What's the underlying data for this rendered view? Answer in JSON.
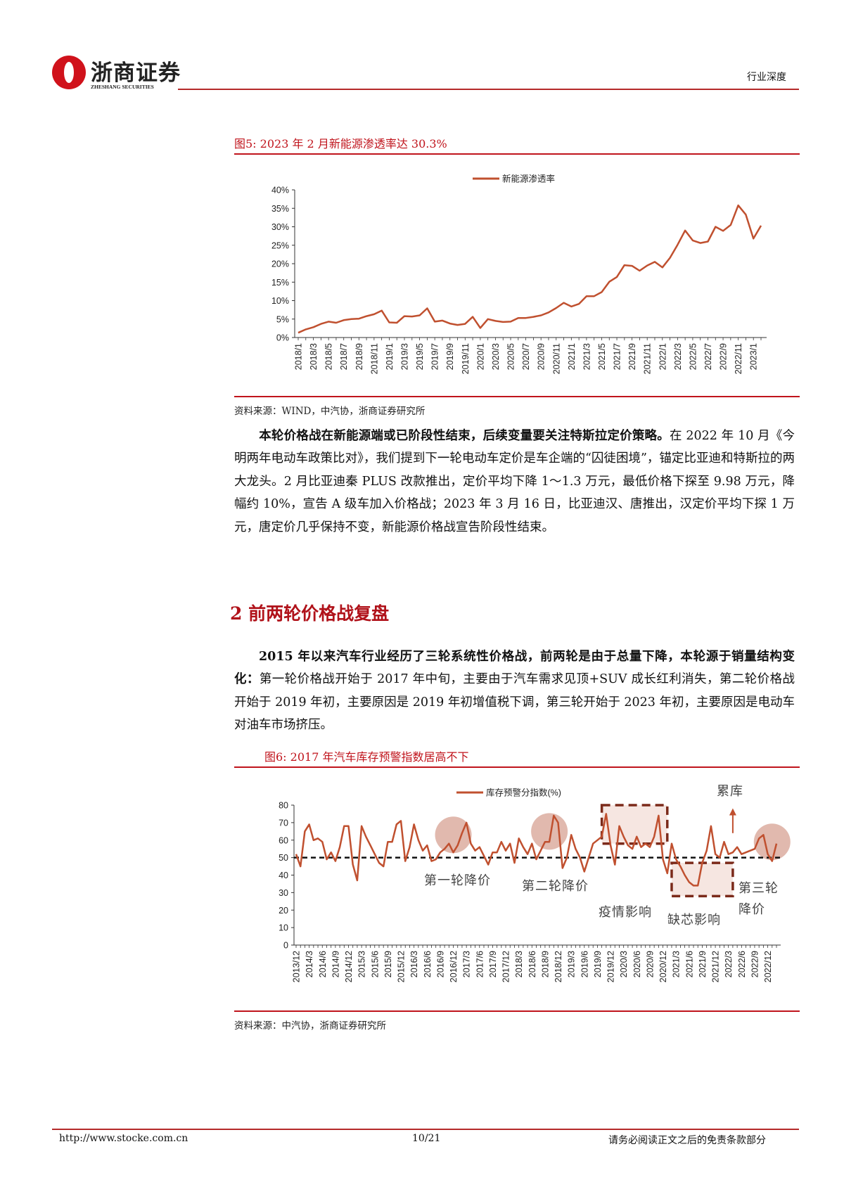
{
  "header": {
    "logo_cn": "浙商证券",
    "logo_en": "ZHESHANG SECURITIES",
    "category": "行业深度"
  },
  "figure5": {
    "title": "图5:   2023 年 2 月新能源渗透率达 30.3%",
    "source": "资料来源：WIND，中汽协，浙商证券研究所"
  },
  "paragraph1": {
    "bold": "本轮价格战在新能源端或已阶段性结束，后续变量要关注特斯拉定价策略。",
    "text": "在 2022 年 10 月《今明两年电动车政策比对》，我们提到下一轮电动车定价是车企端的“囚徒困境”，锚定比亚迪和特斯拉的两大龙头。2 月比亚迪秦 PLUS 改款推出，定价平均下降 1～1.3 万元，最低价格下探至 9.98 万元，降幅约 10%，宣告 A 级车加入价格战；2023 年 3 月 16 日，比亚迪汉、唐推出，汉定价平均下探 1 万元，唐定价几乎保持不变，新能源价格战宣告阶段性结束。"
  },
  "section2": {
    "heading": "2 前两轮价格战复盘"
  },
  "paragraph2": {
    "bold": "2015 年以来汽车行业经历了三轮系统性价格战，前两轮是由于总量下降，本轮源于销量结构变化：",
    "text": "第一轮价格战开始于 2017 年中旬，主要由于汽车需求见顶+SUV 成长红利消失，第二轮价格战开始于 2019 年初，主要原因是 2019 年初增值税下调，第三轮开始于 2023 年初，主要原因是电动车对油车市场挤压。"
  },
  "figure6": {
    "title": "图6:   2017 年汽车库存预警指数居高不下",
    "source": "资料来源：中汽协，浙商证券研究所"
  },
  "footer": {
    "url": "http://www.stocke.com.cn",
    "page": "10/21",
    "disclaimer": "请务必阅读正文之后的免责条款部分"
  },
  "colors": {
    "brand_red": "#c0141c",
    "series": "#c0502f",
    "highlight": "#d9a79a",
    "box": "#7b2a1a"
  },
  "chart_data": [
    {
      "type": "line",
      "title": "2023 年 2 月新能源渗透率达 30.3%",
      "legend": "新能源渗透率",
      "legend_position": "top-center",
      "ylabel": "",
      "ylim": [
        0,
        40
      ],
      "yticks": [
        "0%",
        "5%",
        "10%",
        "15%",
        "20%",
        "25%",
        "30%",
        "35%",
        "40%"
      ],
      "xtick_labels": [
        "2018/1",
        "2018/3",
        "2018/5",
        "2018/7",
        "2018/9",
        "2018/11",
        "2019/1",
        "2019/3",
        "2019/5",
        "2019/7",
        "2019/9",
        "2019/11",
        "2020/1",
        "2020/3",
        "2020/5",
        "2020/7",
        "2020/9",
        "2020/11",
        "2021/1",
        "2021/3",
        "2021/5",
        "2021/7",
        "2021/9",
        "2021/11",
        "2022/1",
        "2022/3",
        "2022/5",
        "2022/7",
        "2022/9",
        "2022/11",
        "2023/1"
      ],
      "x_start": "2018/1",
      "x_end": "2023/2",
      "x_step": "month",
      "values": [
        1.3,
        2.2,
        2.8,
        3.7,
        4.3,
        4.0,
        4.7,
        5.0,
        5.1,
        5.8,
        6.3,
        7.3,
        4.1,
        4.0,
        5.8,
        5.7,
        6.0,
        7.9,
        4.3,
        4.6,
        3.8,
        3.4,
        3.7,
        5.6,
        2.6,
        5.0,
        4.5,
        4.2,
        4.3,
        5.3,
        5.3,
        5.6,
        6.0,
        6.8,
        8.0,
        9.4,
        8.4,
        9.1,
        11.2,
        11.2,
        12.3,
        15.1,
        16.4,
        19.6,
        19.4,
        18.1,
        19.5,
        20.5,
        19.0,
        21.6,
        25.1,
        29.0,
        26.3,
        25.6,
        26.0,
        30.0,
        28.9,
        30.5,
        35.8,
        33.3,
        26.8,
        30.3
      ]
    },
    {
      "type": "line",
      "title": "2017 年汽车库存预警指数居高不下",
      "legend": "库存预警分指数(%)",
      "legend_position": "top-center",
      "ylim": [
        0,
        80
      ],
      "yticks": [
        "0",
        "10",
        "20",
        "30",
        "40",
        "50",
        "60",
        "70",
        "80"
      ],
      "reference_line": 50,
      "xtick_labels": [
        "2013/12",
        "2014/3",
        "2014/6",
        "2014/9",
        "2014/12",
        "2015/3",
        "2015/6",
        "2015/9",
        "2015/12",
        "2016/3",
        "2016/6",
        "2016/9",
        "2016/12",
        "2017/3",
        "2017/6",
        "2017/9",
        "2017/12",
        "2018/3",
        "2018/6",
        "2018/9",
        "2018/12",
        "2019/3",
        "2019/6",
        "2019/9",
        "2019/12",
        "2020/3",
        "2020/6",
        "2020/9",
        "2020/12",
        "2021/3",
        "2021/6",
        "2021/9",
        "2021/12",
        "2022/3",
        "2022/6",
        "2022/9",
        "2022/12"
      ],
      "x_start": "2013/12",
      "x_end": "2023/2",
      "x_step": "month",
      "values": [
        52,
        45,
        65,
        69,
        60,
        61,
        59,
        49,
        53,
        48,
        56,
        68,
        68,
        46,
        37,
        68,
        62,
        57,
        52,
        47,
        45,
        59,
        59,
        69,
        71,
        48,
        56,
        69,
        60,
        54,
        57,
        48,
        49,
        53,
        55,
        58,
        53,
        57,
        64,
        70,
        58,
        54,
        56,
        51,
        46,
        53,
        53,
        59,
        54,
        58,
        47,
        61,
        56,
        52,
        58,
        49,
        54,
        59,
        59,
        74,
        70,
        44,
        50,
        63,
        55,
        50,
        42,
        50,
        58,
        60,
        62,
        75,
        57,
        46,
        68,
        62,
        57,
        55,
        62,
        56,
        58,
        56,
        62,
        74,
        49,
        41,
        58,
        49,
        45,
        40,
        36,
        34,
        34,
        47,
        54,
        68,
        52,
        50,
        59,
        52,
        53,
        56,
        52,
        53,
        54,
        55,
        61,
        63,
        52,
        48,
        58
      ],
      "annotations": {
        "round1": "第一轮降价",
        "round2": "第二轮降价",
        "covid": "疫情影响",
        "chip": "缺芯影响",
        "round3_line1": "第三轮",
        "round3_line2": "降价",
        "inventory": "累库"
      },
      "highlights": [
        {
          "kind": "circle",
          "center_index": 36,
          "center_value": 63
        },
        {
          "kind": "circle",
          "center_index": 58,
          "center_value": 65
        },
        {
          "kind": "circle",
          "center_index": 109,
          "center_value": 59
        },
        {
          "kind": "dashed-box",
          "from_index": 70,
          "to_index": 85,
          "ymin": 58,
          "ymax": 80
        },
        {
          "kind": "dashed-box",
          "from_index": 86,
          "to_index": 100,
          "ymin": 28,
          "ymax": 47
        },
        {
          "kind": "arrow-up",
          "index": 100,
          "from": 64,
          "to": 77
        }
      ]
    }
  ]
}
